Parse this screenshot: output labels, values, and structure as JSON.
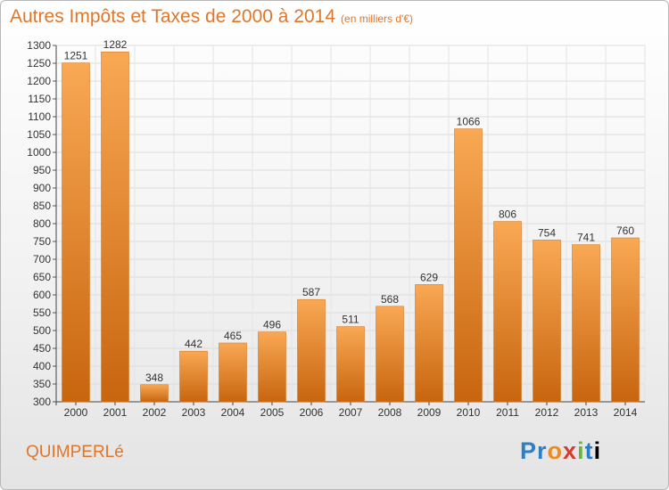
{
  "title": "Autres Impôts et Taxes de 2000 à 2014",
  "subtitle": "(en milliers d'€)",
  "city": "QUIMPERLé",
  "brand": "Proxiti",
  "colors": {
    "accent": "#e0762a",
    "bar_top": "#f9a854",
    "bar_bottom": "#c8650f"
  },
  "chart_data": {
    "type": "bar",
    "title": "Autres Impôts et Taxes de 2000 à 2014",
    "subtitle": "(en milliers d'€)",
    "xlabel": "",
    "ylabel": "",
    "categories": [
      "2000",
      "2001",
      "2002",
      "2003",
      "2004",
      "2005",
      "2006",
      "2007",
      "2008",
      "2009",
      "2010",
      "2011",
      "2012",
      "2013",
      "2014"
    ],
    "values": [
      1251,
      1282,
      348,
      442,
      465,
      496,
      587,
      511,
      568,
      629,
      1066,
      806,
      754,
      741,
      760
    ],
    "ylim": [
      300,
      1300
    ],
    "yticks": [
      300,
      350,
      400,
      450,
      500,
      550,
      600,
      650,
      700,
      750,
      800,
      850,
      900,
      950,
      1000,
      1050,
      1100,
      1150,
      1200,
      1250,
      1300
    ],
    "grid": true,
    "legend": "none"
  }
}
